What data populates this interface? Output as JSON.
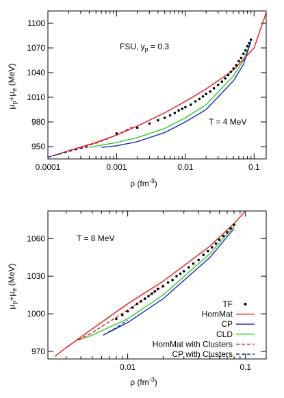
{
  "chart_data": [
    {
      "type": "line",
      "xscale": "log",
      "xlim": [
        0.0001,
        0.15
      ],
      "ylim": [
        935,
        1115
      ],
      "xlabel": "ρ (fm",
      "xlabel_sup": "-3",
      "xlabel_end": ")",
      "ylabel": "μ",
      "ylabel_parts": [
        "μ",
        "p",
        "+μ",
        "e",
        " (MeV)"
      ],
      "annotation_main": "FSU, y",
      "annotation_sub": "p",
      "annotation_end": " = 0.3",
      "temperature": "T = 4 MeV",
      "xticks": [
        {
          "value": 0.0001,
          "label": "0.0001"
        },
        {
          "value": 0.001,
          "label": "0.001"
        },
        {
          "value": 0.01,
          "label": "0.01"
        },
        {
          "value": 0.1,
          "label": "0.1"
        }
      ],
      "yticks": [
        {
          "value": 950,
          "label": "950"
        },
        {
          "value": 980,
          "label": "980"
        },
        {
          "value": 1010,
          "label": "1010"
        },
        {
          "value": 1040,
          "label": "1040"
        },
        {
          "value": 1070,
          "label": "1070"
        },
        {
          "value": 1100,
          "label": "1100"
        }
      ],
      "series": [
        {
          "key": "homMat",
          "color": "#e8161b",
          "dash": false,
          "points": [
            [
              0.0001,
              937
            ],
            [
              0.0002,
              945
            ],
            [
              0.0005,
              955
            ],
            [
              0.001,
              964
            ],
            [
              0.002,
              975
            ],
            [
              0.005,
              991
            ],
            [
              0.01,
              1005
            ],
            [
              0.02,
              1020
            ],
            [
              0.05,
              1043
            ],
            [
              0.1,
              1070
            ],
            [
              0.15,
              1113
            ]
          ]
        },
        {
          "key": "cp",
          "color": "#1327c9",
          "dash": false,
          "points": [
            [
              0.0006,
              949
            ],
            [
              0.001,
              951
            ],
            [
              0.002,
              956
            ],
            [
              0.005,
              967
            ],
            [
              0.01,
              980
            ],
            [
              0.02,
              995
            ],
            [
              0.05,
              1030
            ],
            [
              0.07,
              1050
            ],
            [
              0.09,
              1078
            ]
          ]
        },
        {
          "key": "cld",
          "color": "#28d41c",
          "dash": false,
          "points": [
            [
              0.0004,
              949
            ],
            [
              0.001,
              955
            ],
            [
              0.002,
              961
            ],
            [
              0.005,
              972
            ],
            [
              0.01,
              985
            ],
            [
              0.02,
              1001
            ],
            [
              0.05,
              1036
            ],
            [
              0.07,
              1055
            ],
            [
              0.09,
              1078
            ]
          ]
        },
        {
          "key": "homMatClusters",
          "color": "#e8161b",
          "dash": true,
          "points": [
            [
              0.0001,
              937
            ],
            [
              0.0002,
              944
            ],
            [
              0.0005,
              954
            ],
            [
              0.001,
              964
            ],
            [
              0.0017,
              974
            ]
          ]
        },
        {
          "key": "cpClusters",
          "color": "#1327c9",
          "dash": true,
          "points": [
            [
              0.0001,
              937
            ],
            [
              0.0002,
              944
            ],
            [
              0.0004,
              950
            ]
          ]
        }
      ],
      "tf_points": [
        [
          0.001,
          966
        ],
        [
          0.002,
          973
        ],
        [
          0.003,
          978
        ],
        [
          0.004,
          982
        ],
        [
          0.005,
          985
        ],
        [
          0.006,
          988
        ],
        [
          0.007,
          991
        ],
        [
          0.008,
          994
        ],
        [
          0.009,
          996
        ],
        [
          0.01,
          998
        ],
        [
          0.012,
          1001
        ],
        [
          0.014,
          1005
        ],
        [
          0.016,
          1008
        ],
        [
          0.018,
          1011
        ],
        [
          0.02,
          1014
        ],
        [
          0.023,
          1017
        ],
        [
          0.026,
          1021
        ],
        [
          0.03,
          1025
        ],
        [
          0.034,
          1029
        ],
        [
          0.038,
          1033
        ],
        [
          0.042,
          1037
        ],
        [
          0.046,
          1041
        ],
        [
          0.05,
          1045
        ],
        [
          0.055,
          1049
        ],
        [
          0.06,
          1054
        ],
        [
          0.065,
          1058
        ],
        [
          0.07,
          1063
        ],
        [
          0.075,
          1067
        ],
        [
          0.08,
          1072
        ],
        [
          0.085,
          1076
        ],
        [
          0.09,
          1080
        ]
      ]
    },
    {
      "type": "line",
      "xscale": "log",
      "xlim": [
        0.0021,
        0.15
      ],
      "ylim": [
        964,
        1082
      ],
      "xlabel": "ρ (fm",
      "xlabel_sup": "-3",
      "xlabel_end": ")",
      "ylabel_parts": [
        "μ",
        "p",
        "+μ",
        "e",
        " (MeV)"
      ],
      "temperature": "T = 8 MeV",
      "xticks": [
        {
          "value": 0.01,
          "label": "0.01"
        },
        {
          "value": 0.1,
          "label": "0.1"
        }
      ],
      "yticks": [
        {
          "value": 970,
          "label": "970"
        },
        {
          "value": 1000,
          "label": "1000"
        },
        {
          "value": 1030,
          "label": "1030"
        },
        {
          "value": 1060,
          "label": "1060"
        }
      ],
      "series": [
        {
          "key": "homMat",
          "color": "#e8161b",
          "dash": false,
          "points": [
            [
              0.0024,
              966
            ],
            [
              0.003,
              973
            ],
            [
              0.005,
              988
            ],
            [
              0.01,
              1008
            ],
            [
              0.02,
              1026
            ],
            [
              0.05,
              1054
            ],
            [
              0.08,
              1072
            ],
            [
              0.1,
              1082
            ]
          ]
        },
        {
          "key": "cp",
          "color": "#1327c9",
          "dash": false,
          "points": [
            [
              0.0062,
              983
            ],
            [
              0.01,
              993
            ],
            [
              0.02,
              1012
            ],
            [
              0.05,
              1045
            ],
            [
              0.08,
              1068
            ]
          ]
        },
        {
          "key": "cld",
          "color": "#28d41c",
          "dash": false,
          "points": [
            [
              0.0038,
              979
            ],
            [
              0.005,
              983
            ],
            [
              0.01,
              996
            ],
            [
              0.02,
              1015
            ],
            [
              0.05,
              1048
            ],
            [
              0.08,
              1070
            ]
          ]
        },
        {
          "key": "homMatClusters",
          "color": "#e8161b",
          "dash": true,
          "points": [
            [
              0.0038,
              979
            ],
            [
              0.005,
              985
            ],
            [
              0.01,
              1003
            ],
            [
              0.02,
              1022
            ]
          ]
        },
        {
          "key": "cpClusters",
          "color": "#1327c9",
          "dash": true,
          "points": [
            [
              0.0062,
              983
            ],
            [
              0.008,
              989
            ],
            [
              0.01,
              995
            ]
          ]
        }
      ],
      "tf_points": [
        [
          0.008,
          996
        ],
        [
          0.009,
          999
        ],
        [
          0.01,
          1002
        ],
        [
          0.011,
          1005
        ],
        [
          0.012,
          1008
        ],
        [
          0.013,
          1010
        ],
        [
          0.014,
          1012
        ],
        [
          0.015,
          1014
        ],
        [
          0.016,
          1016
        ],
        [
          0.017,
          1018
        ],
        [
          0.018,
          1020
        ],
        [
          0.02,
          1022
        ],
        [
          0.022,
          1025
        ],
        [
          0.024,
          1027
        ],
        [
          0.026,
          1030
        ],
        [
          0.028,
          1032
        ],
        [
          0.03,
          1034
        ],
        [
          0.033,
          1037
        ],
        [
          0.036,
          1040
        ],
        [
          0.04,
          1043
        ],
        [
          0.044,
          1047
        ],
        [
          0.048,
          1050
        ],
        [
          0.052,
          1053
        ],
        [
          0.056,
          1056
        ],
        [
          0.06,
          1059
        ],
        [
          0.065,
          1062
        ],
        [
          0.07,
          1065
        ],
        [
          0.075,
          1068
        ],
        [
          0.08,
          1071
        ]
      ],
      "legend": [
        {
          "label": "TF",
          "kind": "dot",
          "color": "#000000"
        },
        {
          "label": "HomMat",
          "kind": "line",
          "color": "#e8161b",
          "dash": false
        },
        {
          "label": "CP",
          "kind": "line",
          "color": "#1327c9",
          "dash": false
        },
        {
          "label": "CLD",
          "kind": "line",
          "color": "#28d41c",
          "dash": false
        },
        {
          "label": "HomMat with Clusters",
          "kind": "line",
          "color": "#e8161b",
          "dash": true
        },
        {
          "label": "CP with Clusters",
          "kind": "line",
          "color": "#1327c9",
          "dash": true
        }
      ]
    }
  ]
}
